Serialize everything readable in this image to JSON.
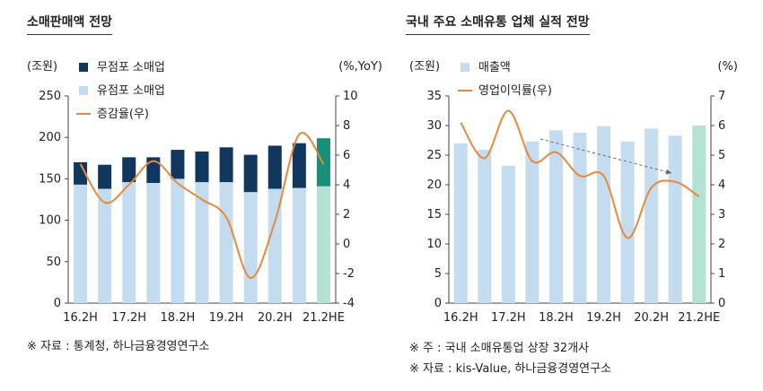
{
  "chart_data": [
    {
      "type": "bar",
      "title": "소매판매액 전망",
      "left_unit": "(조원)",
      "right_unit": "(%,YoY)",
      "categories": [
        "16.2H",
        "",
        "17.2H",
        "",
        "18.2H",
        "",
        "19.2H",
        "",
        "20.2H",
        "",
        "21.2HE"
      ],
      "category_labels": [
        "16.2H",
        "17.2H",
        "18.2H",
        "19.2H",
        "20.2H",
        "21.2HE"
      ],
      "ylim": [
        0,
        250
      ],
      "yticks": [
        0,
        50,
        100,
        150,
        200,
        250
      ],
      "y2lim": [
        -4,
        10
      ],
      "y2ticks": [
        -4,
        -2,
        0,
        2,
        4,
        6,
        8,
        10
      ],
      "series": [
        {
          "name": "무점포 소매업",
          "kind": "bar-stack-top",
          "values": [
            27,
            29,
            30,
            31,
            35,
            37,
            42,
            45,
            52,
            54,
            58
          ]
        },
        {
          "name": "유점포 소매업",
          "kind": "bar-stack-bottom",
          "values": [
            143,
            138,
            146,
            145,
            150,
            146,
            146,
            134,
            138,
            139,
            141
          ]
        },
        {
          "name": "증감율(우)",
          "kind": "line",
          "axis": "right",
          "values": [
            5.4,
            2.8,
            4.0,
            5.6,
            4.1,
            3.0,
            1.8,
            -2.3,
            1.5,
            7.4,
            5.4
          ]
        }
      ],
      "colors": {
        "top": "#12375e",
        "bottom": "#c4dcf0",
        "line": "#e8883a",
        "forecast_top": "#17907a",
        "forecast_bottom": "#b3e2d5"
      },
      "note": "※ 자료 : 통계청, 하나금융경영연구소"
    },
    {
      "type": "bar",
      "title": "국내 주요 소매유통 업체 실적 전망",
      "left_unit": "(조원)",
      "right_unit": "(%)",
      "categories": [
        "16.2H",
        "",
        "17.2H",
        "",
        "18.2H",
        "",
        "19.2H",
        "",
        "20.2H",
        "",
        "21.2HE"
      ],
      "category_labels": [
        "16.2H",
        "17.2H",
        "18.2H",
        "19.2H",
        "20.2H",
        "21.2HE"
      ],
      "ylim": [
        0,
        35
      ],
      "yticks": [
        0,
        5,
        10,
        15,
        20,
        25,
        30,
        35
      ],
      "y2lim": [
        0,
        7
      ],
      "y2ticks": [
        0,
        1,
        2,
        3,
        4,
        5,
        6,
        7
      ],
      "series": [
        {
          "name": "매출액",
          "kind": "bar",
          "values": [
            27.0,
            25.9,
            23.2,
            27.3,
            29.2,
            28.8,
            29.9,
            27.3,
            29.5,
            28.3,
            30.0
          ]
        },
        {
          "name": "영업이익률(우)",
          "kind": "line",
          "axis": "right",
          "values": [
            6.1,
            4.9,
            6.5,
            4.8,
            5.1,
            4.3,
            4.3,
            2.2,
            3.9,
            4.1,
            3.6
          ]
        }
      ],
      "colors": {
        "bar": "#c4dcf0",
        "line": "#e8883a",
        "forecast_bar": "#b3e2d5",
        "trend": "#666666"
      },
      "note": "※ 주 : 국내 소매유통업 상장 32개사",
      "note2": "※ 자료 : kis-Value, 하나금융경영연구소"
    }
  ]
}
